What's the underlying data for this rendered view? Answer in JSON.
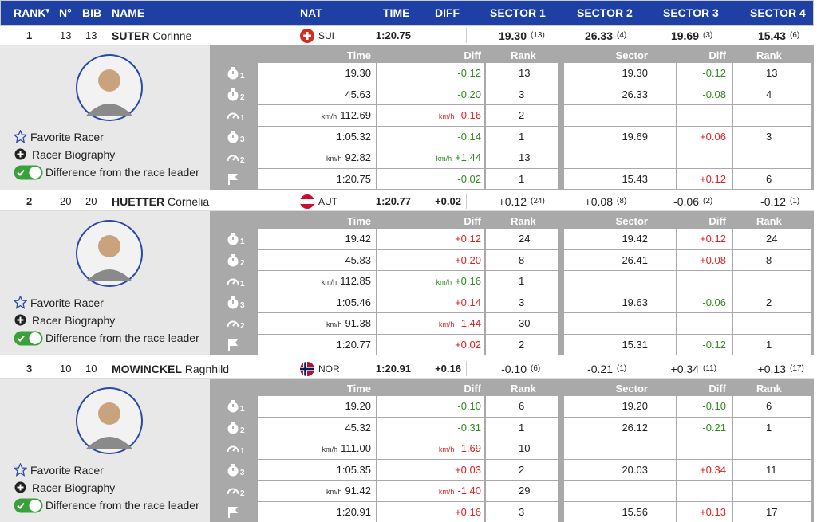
{
  "header": {
    "columns": [
      "RANK",
      "N°",
      "BIB",
      "NAME",
      "NAT",
      "TIME",
      "DIFF",
      "SECTOR 1",
      "SECTOR 2",
      "SECTOR 3",
      "SECTOR 4"
    ],
    "sort_indicator": "▾"
  },
  "detail_labels": {
    "links": [
      "Favorite Racer",
      "Racer Biography",
      "Difference from the race leader"
    ],
    "columns": [
      "Time",
      "Diff",
      "Rank",
      "Sector",
      "Diff",
      "Rank"
    ],
    "speed_unit": "km/h"
  },
  "racers": [
    {
      "rank": 1,
      "number": 13,
      "bib": 13,
      "last_name": "SUTER",
      "first_name": "Corinne",
      "nat": "SUI",
      "time": "1:20.75",
      "sectors": [
        {
          "value": "19.30",
          "rank": "(13)"
        },
        {
          "value": "26.33",
          "rank": "(4)"
        },
        {
          "value": "19.69",
          "rank": "(3)"
        },
        {
          "value": "15.43",
          "rank": "(6)"
        }
      ],
      "splits": [
        {
          "icon": "timer",
          "index": 1,
          "time": "19.30",
          "diff": "-0.12",
          "rank": 13,
          "sector": "19.30",
          "sector_diff": "-0.12",
          "sector_rank": 13
        },
        {
          "icon": "timer",
          "index": 2,
          "time": "45.63",
          "diff": "-0.20",
          "rank": 3,
          "sector": "26.33",
          "sector_diff": "-0.08",
          "sector_rank": 4
        },
        {
          "icon": "speed",
          "index": 1,
          "time": "112.69",
          "diff": "-0.16",
          "rank": 2
        },
        {
          "icon": "timer",
          "index": 3,
          "time": "1:05.32",
          "diff": "-0.14",
          "rank": 1,
          "sector": "19.69",
          "sector_diff": "+0.06",
          "sector_rank": 3
        },
        {
          "icon": "speed",
          "index": 2,
          "time": "92.82",
          "diff": "+1.44",
          "rank": 13
        },
        {
          "icon": "finish",
          "time": "1:20.75",
          "diff": "-0.02",
          "rank": 1,
          "sector": "15.43",
          "sector_diff": "+0.12",
          "sector_rank": 6
        }
      ]
    },
    {
      "rank": 2,
      "number": 20,
      "bib": 20,
      "last_name": "HUETTER",
      "first_name": "Cornelia",
      "nat": "AUT",
      "time": "1:20.77",
      "diff": "+0.02",
      "sectors": [
        {
          "value": "+0.12",
          "rank": "(24)"
        },
        {
          "value": "+0.08",
          "rank": "(8)"
        },
        {
          "value": "-0.06",
          "rank": "(2)"
        },
        {
          "value": "-0.12",
          "rank": "(1)"
        }
      ],
      "splits": [
        {
          "icon": "timer",
          "index": 1,
          "time": "19.42",
          "diff": "+0.12",
          "rank": 24,
          "sector": "19.42",
          "sector_diff": "+0.12",
          "sector_rank": 24
        },
        {
          "icon": "timer",
          "index": 2,
          "time": "45.83",
          "diff": "+0.20",
          "rank": 8,
          "sector": "26.41",
          "sector_diff": "+0.08",
          "sector_rank": 8
        },
        {
          "icon": "speed",
          "index": 1,
          "time": "112.85",
          "diff": "+0.16",
          "rank": 1
        },
        {
          "icon": "timer",
          "index": 3,
          "time": "1:05.46",
          "diff": "+0.14",
          "rank": 3,
          "sector": "19.63",
          "sector_diff": "-0.06",
          "sector_rank": 2
        },
        {
          "icon": "speed",
          "index": 2,
          "time": "91.38",
          "diff": "-1.44",
          "rank": 30
        },
        {
          "icon": "finish",
          "time": "1:20.77",
          "diff": "+0.02",
          "rank": 2,
          "sector": "15.31",
          "sector_diff": "-0.12",
          "sector_rank": 1
        }
      ]
    },
    {
      "rank": 3,
      "number": 10,
      "bib": 10,
      "last_name": "MOWINCKEL",
      "first_name": "Ragnhild",
      "nat": "NOR",
      "time": "1:20.91",
      "diff": "+0.16",
      "sectors": [
        {
          "value": "-0.10",
          "rank": "(6)"
        },
        {
          "value": "-0.21",
          "rank": "(1)"
        },
        {
          "value": "+0.34",
          "rank": "(11)"
        },
        {
          "value": "+0.13",
          "rank": "(17)"
        }
      ],
      "splits": [
        {
          "icon": "timer",
          "index": 1,
          "time": "19.20",
          "diff": "-0.10",
          "rank": 6,
          "sector": "19.20",
          "sector_diff": "-0.10",
          "sector_rank": 6
        },
        {
          "icon": "timer",
          "index": 2,
          "time": "45.32",
          "diff": "-0.31",
          "rank": 1,
          "sector": "26.12",
          "sector_diff": "-0.21",
          "sector_rank": 1
        },
        {
          "icon": "speed",
          "index": 1,
          "time": "111.00",
          "diff": "-1.69",
          "rank": 10
        },
        {
          "icon": "timer",
          "index": 3,
          "time": "1:05.35",
          "diff": "+0.03",
          "rank": 2,
          "sector": "20.03",
          "sector_diff": "+0.34",
          "sector_rank": 11
        },
        {
          "icon": "speed",
          "index": 2,
          "time": "91.42",
          "diff": "-1.40",
          "rank": 29
        },
        {
          "icon": "finish",
          "time": "1:20.91",
          "diff": "+0.16",
          "rank": 3,
          "sector": "15.56",
          "sector_diff": "+0.13",
          "sector_rank": 17
        }
      ]
    }
  ]
}
